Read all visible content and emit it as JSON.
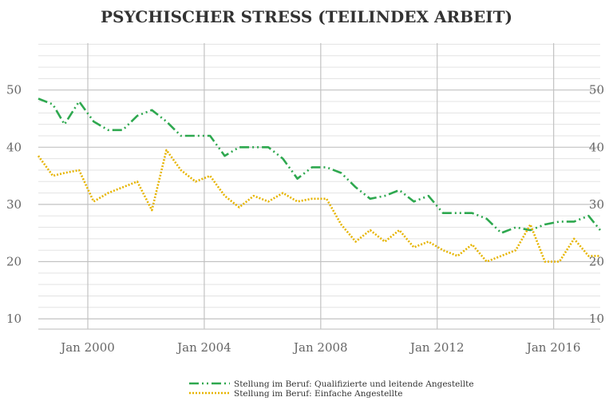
{
  "chart_data": {
    "type": "line",
    "title": "PSYCHISCHER STRESS (TEILINDEX ARBEIT)",
    "xlabel": "",
    "ylabel": "",
    "x_ticks": [
      "Jan 2000",
      "Jan 2004",
      "Jan 2008",
      "Jan 2012",
      "Jan 2016"
    ],
    "x_tick_years": [
      2000,
      2004,
      2008,
      2012,
      2016
    ],
    "xlim": [
      1998.3,
      2017.6
    ],
    "y_ticks": [
      10,
      20,
      30,
      40,
      50
    ],
    "ylim": [
      8.2,
      58.2
    ],
    "grid": true,
    "legend_position": "bottom",
    "series": [
      {
        "name": "Stellung im Beruf: Qualifizierte und leitende Angestellte",
        "color": "#2ea84f",
        "dash": "dash-dot-dot",
        "x": [
          1998.3,
          1998.8,
          1999.2,
          1999.7,
          2000.2,
          2000.7,
          2001.2,
          2001.7,
          2002.2,
          2002.7,
          2003.2,
          2003.7,
          2004.2,
          2004.7,
          2005.2,
          2005.7,
          2006.2,
          2006.7,
          2007.2,
          2007.7,
          2008.2,
          2008.7,
          2009.2,
          2009.7,
          2010.2,
          2010.7,
          2011.2,
          2011.7,
          2012.2,
          2012.7,
          2013.2,
          2013.7,
          2014.2,
          2014.7,
          2015.2,
          2015.7,
          2016.2,
          2016.7,
          2017.2,
          2017.6
        ],
        "y": [
          48.5,
          47.5,
          44.0,
          48.0,
          44.5,
          43.0,
          43.0,
          45.5,
          46.5,
          44.5,
          42.0,
          42.0,
          42.0,
          38.5,
          40.0,
          40.0,
          40.0,
          38.0,
          34.5,
          36.5,
          36.5,
          35.5,
          33.0,
          31.0,
          31.5,
          32.5,
          30.5,
          31.5,
          28.5,
          28.5,
          28.5,
          27.5,
          25.0,
          26.0,
          25.5,
          26.5,
          27.0,
          27.0,
          28.0,
          25.5
        ]
      },
      {
        "name": "Stellung im Beruf: Einfache Angestellte",
        "color": "#e6b400",
        "dash": "dotted",
        "x": [
          1998.3,
          1998.8,
          1999.2,
          1999.7,
          2000.2,
          2000.7,
          2001.2,
          2001.7,
          2002.2,
          2002.7,
          2003.2,
          2003.7,
          2004.2,
          2004.7,
          2005.2,
          2005.7,
          2006.2,
          2006.7,
          2007.2,
          2007.7,
          2008.2,
          2008.7,
          2009.2,
          2009.7,
          2010.2,
          2010.7,
          2011.2,
          2011.7,
          2012.2,
          2012.7,
          2013.2,
          2013.7,
          2014.2,
          2014.7,
          2015.2,
          2015.7,
          2016.2,
          2016.7,
          2017.2,
          2017.6
        ],
        "y": [
          38.5,
          35.0,
          35.5,
          36.0,
          30.5,
          32.0,
          33.0,
          34.0,
          29.0,
          39.5,
          36.0,
          34.0,
          35.0,
          31.5,
          29.5,
          31.5,
          30.5,
          32.0,
          30.5,
          31.0,
          31.0,
          26.5,
          23.5,
          25.5,
          23.5,
          25.5,
          22.5,
          23.5,
          22.0,
          21.0,
          23.0,
          20.0,
          21.0,
          22.0,
          26.5,
          20.0,
          20.0,
          24.0,
          21.0,
          21.0
        ]
      }
    ]
  }
}
